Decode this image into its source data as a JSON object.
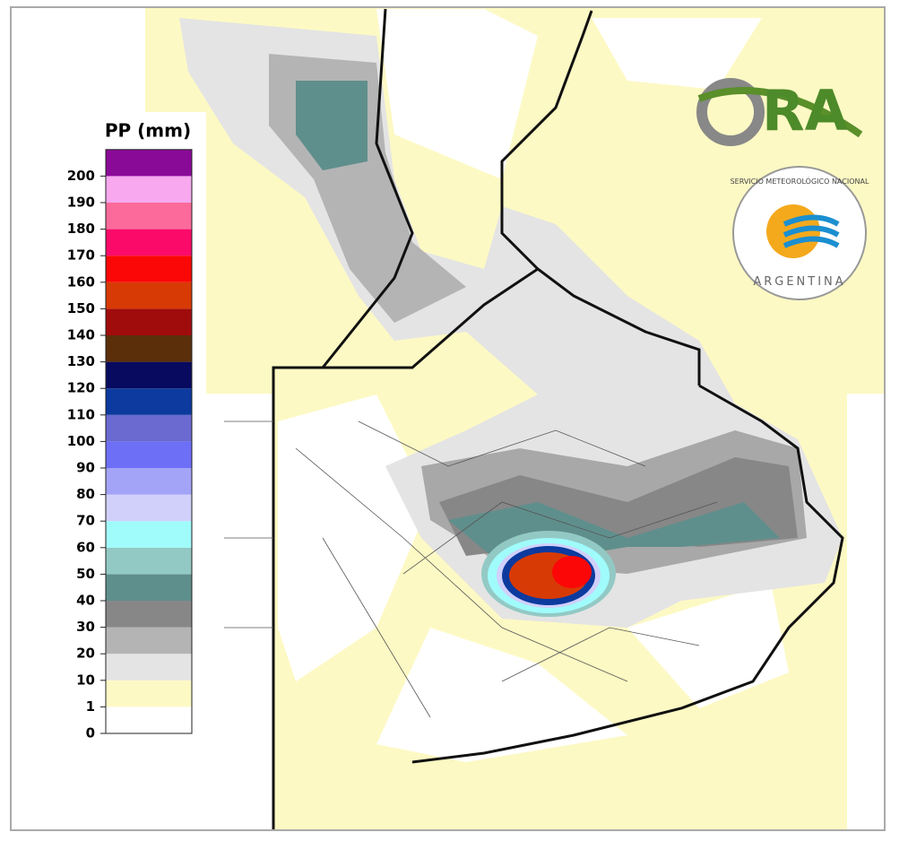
{
  "legend": {
    "title": "PP (mm)",
    "ticks": [
      0,
      1,
      10,
      20,
      30,
      40,
      50,
      60,
      70,
      80,
      90,
      100,
      110,
      120,
      130,
      140,
      150,
      160,
      170,
      180,
      190,
      200
    ],
    "colors": [
      "#ffffff",
      "#fdf9c4",
      "#e4e4e4",
      "#b4b4b4",
      "#878787",
      "#5f8f8c",
      "#93c9c4",
      "#a0fbfb",
      "#d0d0fb",
      "#a3a3f8",
      "#6d6ff7",
      "#6a6ad0",
      "#0c3a9e",
      "#070a5e",
      "#5b2f0a",
      "#a00c0c",
      "#d83a05",
      "#fb0707",
      "#fb0a6a",
      "#fb6a9a",
      "#f7a8ef",
      "#8a0a98"
    ]
  },
  "logos": {
    "ora": "RA",
    "smn_top": "SERVICIO METEOROLÓGICO NACIONAL",
    "smn_bottom": "ARGENTINA"
  }
}
